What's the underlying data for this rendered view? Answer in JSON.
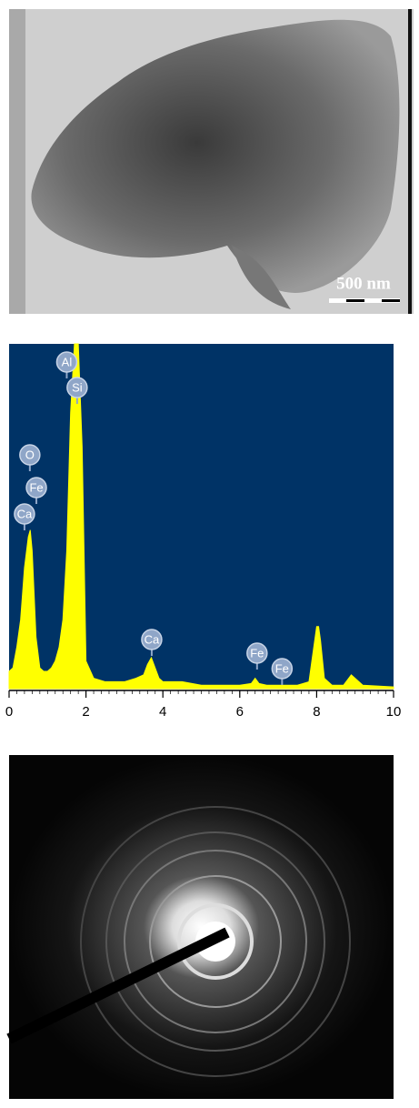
{
  "tem_image": {
    "scale_bar": "500 nm"
  },
  "chart_data": {
    "type": "area",
    "color": "#ffff00",
    "background": "#003366",
    "x": [
      0,
      0.1,
      0.2,
      0.3,
      0.4,
      0.5,
      0.55,
      0.6,
      0.7,
      0.8,
      0.9,
      1.0,
      1.1,
      1.2,
      1.3,
      1.4,
      1.5,
      1.6,
      1.7,
      1.8,
      1.9,
      2.0,
      2.2,
      2.5,
      3.0,
      3.3,
      3.5,
      3.6,
      3.7,
      3.8,
      3.9,
      4.0,
      4.5,
      5.0,
      6.0,
      6.3,
      6.4,
      6.5,
      6.7,
      7.0,
      7.5,
      7.8,
      7.9,
      8.0,
      8.05,
      8.1,
      8.2,
      8.4,
      8.7,
      8.9,
      9.0,
      9.2,
      10.0
    ],
    "values": [
      5,
      6,
      12,
      20,
      35,
      44,
      46,
      40,
      15,
      6,
      5,
      5,
      6,
      8,
      12,
      20,
      40,
      80,
      100,
      100,
      70,
      8,
      3,
      2,
      2,
      3,
      4,
      7,
      9,
      6,
      3,
      2,
      2,
      1,
      1,
      1.5,
      3,
      1.5,
      1,
      1,
      1,
      2,
      10,
      18,
      18,
      14,
      3,
      1,
      1,
      4,
      3,
      1,
      0.5
    ],
    "xlim": [
      0,
      10
    ],
    "xticks": [
      0,
      2,
      4,
      6,
      8,
      10
    ],
    "ylim": [
      0,
      100
    ],
    "annotations": [
      {
        "text": "Al",
        "x": 1.5
      },
      {
        "text": "Si",
        "x": 1.77
      },
      {
        "text": "O",
        "x": 0.54
      },
      {
        "text": "Fe",
        "x": 0.71
      },
      {
        "text": "Ca",
        "x": 0.4
      },
      {
        "text": "Ca",
        "x": 3.71
      },
      {
        "text": "Fe",
        "x": 6.45
      },
      {
        "text": "Fe",
        "x": 7.1
      }
    ]
  }
}
